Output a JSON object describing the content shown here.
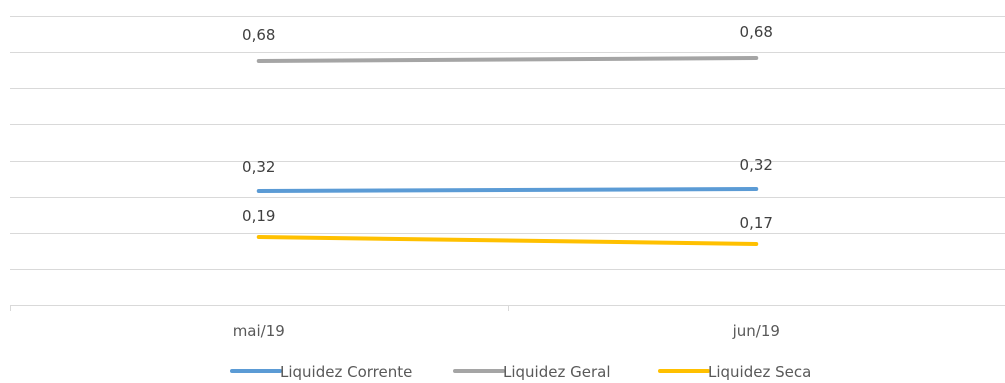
{
  "chart_data": {
    "type": "line",
    "categories": [
      "mai/19",
      "jun/19"
    ],
    "series": [
      {
        "name": "Liquidez Corrente",
        "values": [
          0.32,
          0.32
        ],
        "labels": [
          "0,32",
          "0,32"
        ],
        "color": "#5b9bd5"
      },
      {
        "name": "Liquidez Geral",
        "values": [
          0.68,
          0.68
        ],
        "labels": [
          "0,68",
          "0,68"
        ],
        "color": "#a5a5a5"
      },
      {
        "name": "Liquidez Seca",
        "values": [
          0.19,
          0.17
        ],
        "labels": [
          "0,19",
          "0,17"
        ],
        "color": "#ffc000"
      }
    ],
    "ylim": [
      0,
      0.8
    ],
    "grid": true,
    "legend": "bottom",
    "title": "",
    "xlabel": "",
    "ylabel": ""
  }
}
